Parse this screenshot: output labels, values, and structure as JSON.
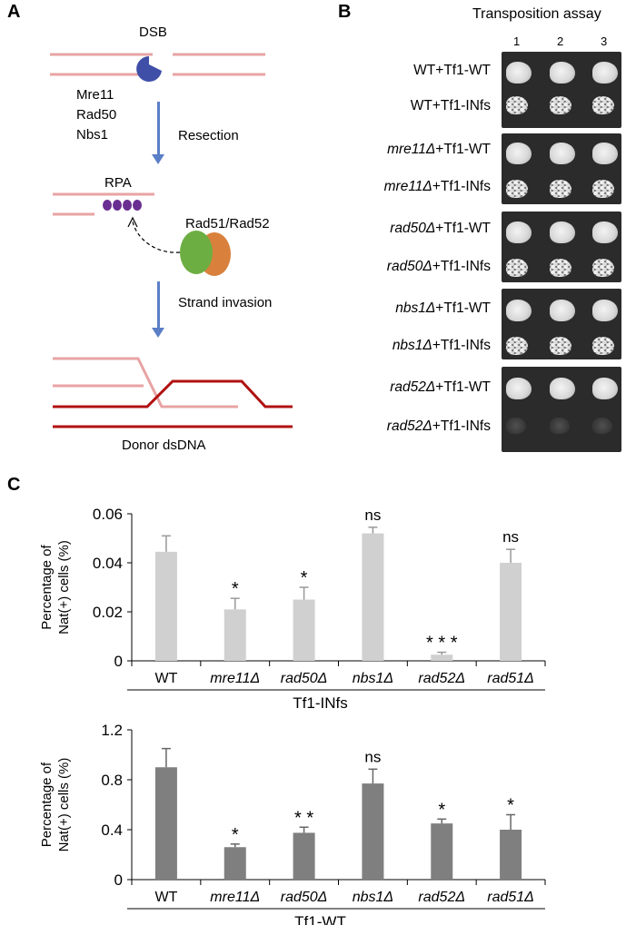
{
  "panel_a": {
    "letter": "A",
    "dsb": "DSB",
    "proteins": [
      "Mre11",
      "Rad50",
      "Nbs1"
    ],
    "resection": "Resection",
    "rpa": "RPA",
    "rad51_rad52": "Rad51/Rad52",
    "strand_invasion": "Strand invasion",
    "donor": "Donor dsDNA",
    "colors": {
      "dna_light": "#e8a3a3",
      "dna_dark": "#b01010",
      "mre11": "#3f4fa8",
      "rpa": "#6a2d91",
      "rad51": "#6dae42",
      "rad52": "#d9813c",
      "arrow": "#5b7fc7"
    }
  },
  "panel_b": {
    "letter": "B",
    "title": "Transposition assay",
    "columns": [
      "1",
      "2",
      "3"
    ],
    "rows": [
      {
        "strain": "WT",
        "suffix": "+Tf1-WT",
        "italic": false
      },
      {
        "strain": "WT",
        "suffix": "+Tf1-INfs",
        "italic": false
      },
      {
        "strain": "mre11Δ",
        "suffix": "+Tf1-WT",
        "italic": true
      },
      {
        "strain": "mre11Δ",
        "suffix": "+Tf1-INfs",
        "italic": true
      },
      {
        "strain": "rad50Δ",
        "suffix": "+Tf1-WT",
        "italic": true
      },
      {
        "strain": "rad50Δ",
        "suffix": "+Tf1-INfs",
        "italic": true
      },
      {
        "strain": "nbs1Δ",
        "suffix": "+Tf1-WT",
        "italic": true
      },
      {
        "strain": "nbs1Δ",
        "suffix": "+Tf1-INfs",
        "italic": true
      },
      {
        "strain": "rad52Δ",
        "suffix": "+Tf1-WT",
        "italic": true
      },
      {
        "strain": "rad52Δ",
        "suffix": "+Tf1-INfs",
        "italic": true
      }
    ]
  },
  "panel_c": {
    "letter": "C"
  },
  "chart_data": [
    {
      "type": "bar",
      "title": "",
      "xlabel": "Tf1-INfs",
      "ylabel": "Percentage of Nat(+) cells (%)",
      "categories": [
        "WT",
        "mre11Δ",
        "rad50Δ",
        "nbs1Δ",
        "rad52Δ",
        "rad51Δ"
      ],
      "values": [
        0.0445,
        0.021,
        0.025,
        0.052,
        0.0025,
        0.04
      ],
      "errors": [
        0.0065,
        0.0045,
        0.005,
        0.0025,
        0.001,
        0.0055
      ],
      "significance": [
        "",
        "*",
        "*",
        "ns",
        "* * *",
        "ns"
      ],
      "ylim": [
        0,
        0.06
      ],
      "yticks": [
        "0",
        "0.02",
        "0.04",
        "0.06"
      ],
      "yticks_values": [
        0,
        0.02,
        0.04,
        0.06
      ],
      "bar_color": "#d0d0d0",
      "grid": false
    },
    {
      "type": "bar",
      "title": "",
      "xlabel": "Tf1-WT",
      "ylabel": "Percentage of Nat(+) cells (%)",
      "categories": [
        "WT",
        "mre11Δ",
        "rad50Δ",
        "nbs1Δ",
        "rad52Δ",
        "rad51Δ"
      ],
      "values": [
        0.9,
        0.26,
        0.375,
        0.77,
        0.45,
        0.4
      ],
      "errors": [
        0.15,
        0.025,
        0.045,
        0.115,
        0.035,
        0.12
      ],
      "significance": [
        "",
        "*",
        "* *",
        "ns",
        "*",
        "*"
      ],
      "ylim": [
        0,
        1.2
      ],
      "yticks": [
        "0",
        "0.4",
        "0.8",
        "1.2"
      ],
      "yticks_values": [
        0,
        0.4,
        0.8,
        1.2
      ],
      "bar_color": "#7f7f7f",
      "grid": false
    }
  ]
}
